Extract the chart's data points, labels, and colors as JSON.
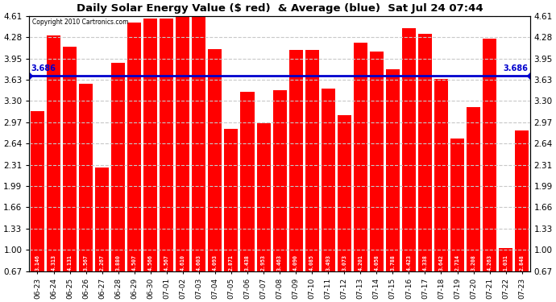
{
  "title": "Daily Solar Energy Value ($ red)  & Average (blue)  Sat Jul 24 07:44",
  "copyright": "Copyright 2010 Cartronics.com",
  "average": 3.686,
  "bar_color": "#ff0000",
  "avg_line_color": "#0000cd",
  "background_color": "#ffffff",
  "plot_bg_color": "#ffffff",
  "grid_color": "#c8c8c8",
  "labels": [
    "06-23",
    "06-24",
    "06-25",
    "06-26",
    "06-27",
    "06-28",
    "06-29",
    "06-30",
    "07-01",
    "07-02",
    "07-03",
    "07-04",
    "07-05",
    "07-06",
    "07-07",
    "07-08",
    "07-09",
    "07-10",
    "07-11",
    "07-12",
    "07-13",
    "07-14",
    "07-15",
    "07-16",
    "07-17",
    "07-18",
    "07-19",
    "07-20",
    "07-21",
    "07-22",
    "07-23"
  ],
  "values": [
    3.146,
    4.313,
    4.131,
    3.567,
    2.267,
    3.88,
    4.507,
    4.566,
    4.567,
    4.61,
    4.603,
    4.093,
    2.871,
    3.438,
    2.953,
    3.463,
    4.09,
    4.085,
    3.493,
    3.073,
    4.201,
    4.058,
    3.788,
    4.423,
    4.338,
    3.642,
    2.714,
    3.208,
    4.263,
    1.031,
    2.848
  ],
  "yticks": [
    0.67,
    1.0,
    1.33,
    1.66,
    1.99,
    2.31,
    2.64,
    2.97,
    3.3,
    3.63,
    3.95,
    4.28,
    4.61
  ],
  "ymin": 0.67,
  "ymax": 4.61,
  "bar_bottom": 0.67
}
